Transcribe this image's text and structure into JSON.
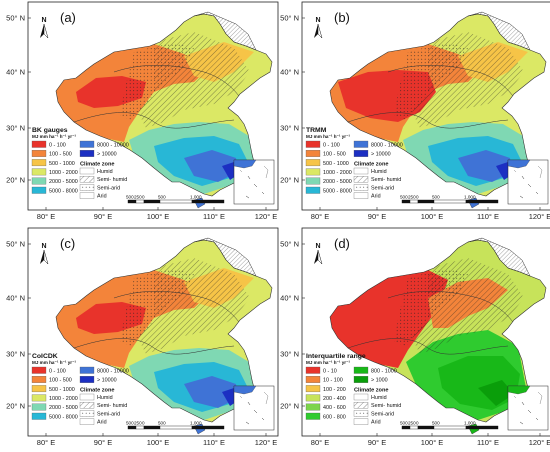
{
  "figure": {
    "lon_ticks": [
      "80° E",
      "90° E",
      "100° E",
      "110° E",
      "120° E"
    ],
    "lat_ticks": [
      "50° N",
      "40° N",
      "30° N",
      "20° N"
    ],
    "north_label": "N",
    "scale_numbers": [
      "500",
      "250",
      "0",
      "500",
      "1,000"
    ],
    "climate_zone_title": "Climate zone",
    "climate_zones": [
      "Humid",
      "Semi- humid",
      "Semi-arid",
      "Arid"
    ]
  },
  "panels": [
    {
      "label": "(a)",
      "legend_title": "BK gauges",
      "unit": "MJ mm ha⁻¹ h⁻¹ yr⁻¹",
      "classes": [
        {
          "label": "0 - 100",
          "color": "#e8332b"
        },
        {
          "label": "100 - 500",
          "color": "#f3843a"
        },
        {
          "label": "500 - 1000",
          "color": "#f6c447"
        },
        {
          "label": "1000 - 2000",
          "color": "#dbe865"
        },
        {
          "label": "2000 - 5000",
          "color": "#7fd8b3"
        },
        {
          "label": "5000 - 8000",
          "color": "#28b7d6"
        },
        {
          "label": "8000 - 10000",
          "color": "#3f73d6"
        },
        {
          "label": "> 10000",
          "color": "#1c2fc2"
        }
      ]
    },
    {
      "label": "(b)",
      "legend_title": "TRMM",
      "unit": "MJ mm ha⁻¹ h⁻¹ yr⁻¹",
      "classes": [
        {
          "label": "0 - 100",
          "color": "#e8332b"
        },
        {
          "label": "100 - 500",
          "color": "#f3843a"
        },
        {
          "label": "500 - 1000",
          "color": "#f6c447"
        },
        {
          "label": "1000 - 2000",
          "color": "#dbe865"
        },
        {
          "label": "2000 - 5000",
          "color": "#7fd8b3"
        },
        {
          "label": "5000 - 8000",
          "color": "#28b7d6"
        },
        {
          "label": "8000 - 10000",
          "color": "#3f73d6"
        },
        {
          "label": "> 10000",
          "color": "#1c2fc2"
        }
      ]
    },
    {
      "label": "(c)",
      "legend_title": "CoICDK",
      "unit": "MJ mm ha⁻¹ h⁻¹ yr⁻¹",
      "classes": [
        {
          "label": "0 - 100",
          "color": "#e8332b"
        },
        {
          "label": "100 - 500",
          "color": "#f3843a"
        },
        {
          "label": "500 - 1000",
          "color": "#f6c447"
        },
        {
          "label": "1000 - 2000",
          "color": "#dbe865"
        },
        {
          "label": "2000 - 5000",
          "color": "#7fd8b3"
        },
        {
          "label": "5000 - 8000",
          "color": "#28b7d6"
        },
        {
          "label": "8000 - 10000",
          "color": "#3f73d6"
        },
        {
          "label": "> 10000",
          "color": "#1c2fc2"
        }
      ]
    },
    {
      "label": "(d)",
      "legend_title": "Interquartile range",
      "unit": "MJ mm ha⁻¹ h⁻¹ yr⁻¹",
      "classes": [
        {
          "label": "0 - 10",
          "color": "#e8332b"
        },
        {
          "label": "10 - 100",
          "color": "#f3843a"
        },
        {
          "label": "100 - 200",
          "color": "#f6c447"
        },
        {
          "label": "200 - 400",
          "color": "#c7e35a"
        },
        {
          "label": "400 - 600",
          "color": "#7cd44a"
        },
        {
          "label": "600 - 800",
          "color": "#2fcb2f"
        },
        {
          "label": "800 - 1000",
          "color": "#18b818"
        },
        {
          "label": "> 1000",
          "color": "#0a9e0a"
        }
      ]
    }
  ]
}
